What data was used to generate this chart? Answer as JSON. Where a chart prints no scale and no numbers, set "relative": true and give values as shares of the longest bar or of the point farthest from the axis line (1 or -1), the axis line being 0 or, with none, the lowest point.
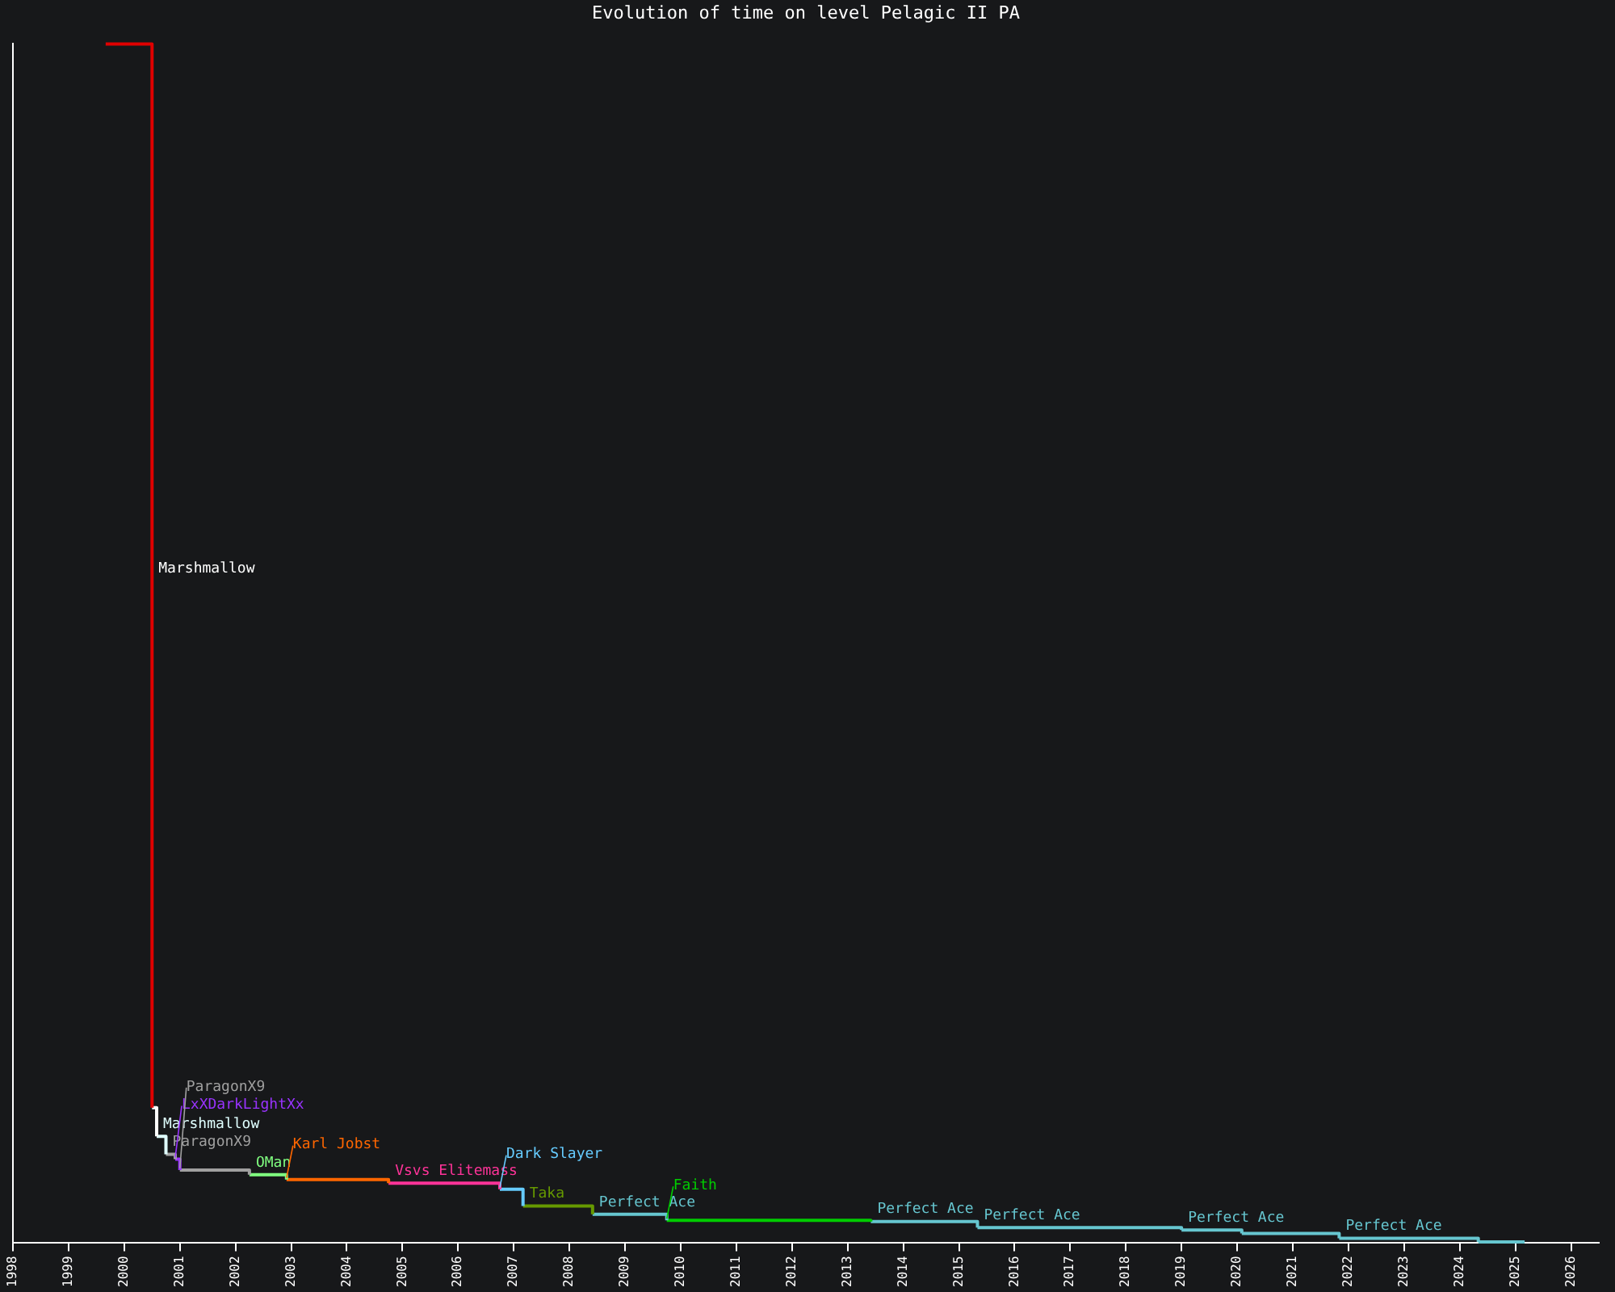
{
  "chart_data": {
    "type": "step",
    "title": "Evolution of time on level Pelagic II PA",
    "relative": true,
    "series": [
      {
        "color": "#e00000",
        "x": [
          "1999-09",
          "2000-07"
        ],
        "values": [
          1,
          0.113
        ]
      },
      {
        "color": "#ffffff",
        "x": [
          "2000-07",
          "2000-08"
        ],
        "values": [
          0.113,
          0.089
        ]
      },
      {
        "color": "#e0ffff",
        "x": [
          "2000-08",
          "2000-10"
        ],
        "values": [
          0.089,
          0.074
        ]
      },
      {
        "color": "#a0a0a0",
        "x": [
          "2000-10",
          "2000-12"
        ],
        "values": [
          0.074,
          0.07
        ]
      },
      {
        "color": "#9933ff",
        "x": [
          "2000-12",
          "2001-01"
        ],
        "values": [
          0.07,
          0.061
        ]
      },
      {
        "color": "#a0a0a0",
        "x": [
          "2001-01",
          "2002-04"
        ],
        "values": [
          0.061,
          0.057
        ]
      },
      {
        "color": "#80ff80",
        "x": [
          "2002-04",
          "2002-12"
        ],
        "values": [
          0.057,
          0.053
        ]
      },
      {
        "color": "#ff6600",
        "x": [
          "2002-12",
          "2004-10"
        ],
        "values": [
          0.053,
          0.05
        ]
      },
      {
        "color": "#ff3399",
        "x": [
          "2004-10",
          "2006-10"
        ],
        "values": [
          0.05,
          0.045
        ]
      },
      {
        "color": "#66ccff",
        "x": [
          "2006-10",
          "2007-03"
        ],
        "values": [
          0.045,
          0.031
        ]
      },
      {
        "color": "#669900",
        "x": [
          "2007-03",
          "2008-06"
        ],
        "values": [
          0.031,
          0.024
        ]
      },
      {
        "color": "#66c6d0",
        "x": [
          "2008-06",
          "2009-10"
        ],
        "values": [
          0.024,
          0.019
        ]
      },
      {
        "color": "#00cc00",
        "x": [
          "2009-10",
          "2013-06"
        ],
        "values": [
          0.019,
          0.018
        ]
      },
      {
        "color": "#66c6d0",
        "x": [
          "2013-06",
          "2015-05"
        ],
        "values": [
          0.018,
          0.013
        ]
      },
      {
        "color": "#66c6d0",
        "x": [
          "2015-05",
          "2019-01"
        ],
        "values": [
          0.013,
          0.011
        ]
      },
      {
        "color": "#66c6d0",
        "x": [
          "2019-01",
          "2020-02"
        ],
        "values": [
          0.011,
          0.008
        ]
      },
      {
        "color": "#66c6d0",
        "x": [
          "2020-02",
          "2021-11"
        ],
        "values": [
          0.008,
          0.004
        ]
      },
      {
        "color": "#66c6d0",
        "x": [
          "2021-11",
          "2024-05"
        ],
        "values": [
          0.004,
          0.001
        ]
      },
      {
        "color": "#66c6d0",
        "x": [
          "2024-05",
          "2025-03"
        ],
        "values": [
          0.001,
          0.001
        ]
      }
    ],
    "xlim": [
      "1998",
      "2026-07"
    ],
    "xticks": [
      "1998",
      "1999",
      "2000",
      "2001",
      "2002",
      "2003",
      "2004",
      "2005",
      "2006",
      "2007",
      "2008",
      "2009",
      "2010",
      "2011",
      "2012",
      "2013",
      "2014",
      "2015",
      "2016",
      "2017",
      "2018",
      "2019",
      "2020",
      "2021",
      "2022",
      "2023",
      "2024",
      "2025",
      "2026"
    ],
    "annotations": [
      "Marshmallow",
      {
        "text": "Marshmallow",
        "x": "2000-08",
        "y": 0.089
      },
      {
        "text": "ParagonX9",
        "x": "2000-10",
        "y": 0.074
      },
      {
        "text": "LxXDarkLightXx",
        "x": "2000-12",
        "y": 0.07
      },
      {
        "text": "ParagonX9",
        "x": "2001-01",
        "y": 0.061
      },
      {
        "text": "OMan",
        "x": "2002-04",
        "y": 0.057
      },
      {
        "text": "Karl Jobst",
        "x": "2002-12",
        "y": 0.053
      },
      {
        "text": "Vsvs Elitemass",
        "x": "2004-10",
        "y": 0.05
      },
      {
        "text": "Dark Slayer",
        "x": "2006-10",
        "y": 0.045
      },
      {
        "text": "Taka",
        "x": "2007-03",
        "y": 0.031
      },
      {
        "text": "Perfect Ace",
        "x": "2008-06",
        "y": 0.024
      },
      {
        "text": "Faith",
        "x": "2009-10",
        "y": 0.019
      },
      {
        "text": "Perfect Ace",
        "x": "2013-06",
        "y": 0.018
      },
      {
        "text": "Perfect Ace",
        "x": "2015-05",
        "y": 0.013
      },
      {
        "text": "Perfect Ace",
        "x": "2019-01",
        "y": 0.011
      },
      {
        "text": "Perfect Ace",
        "x": "2021-11",
        "y": 0.004
      }
    ]
  }
}
